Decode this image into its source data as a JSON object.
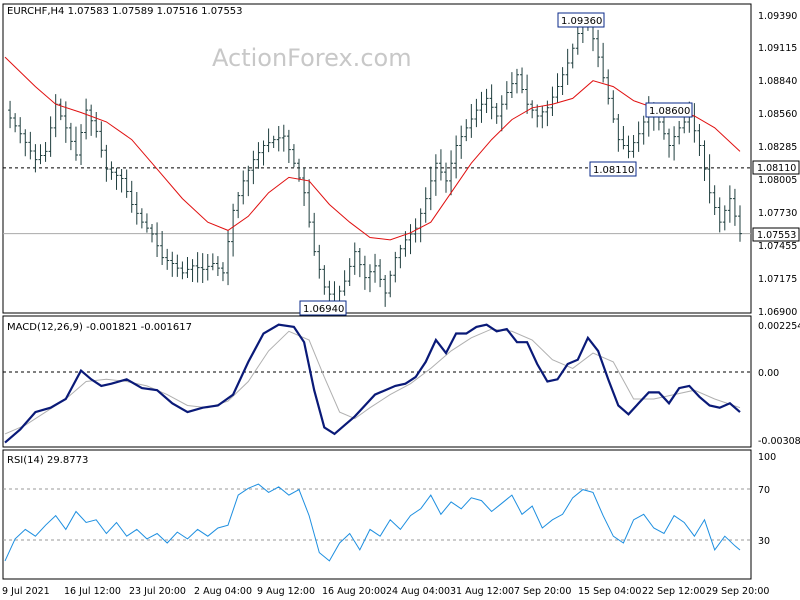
{
  "chart_data": {
    "type": "line",
    "watermark": "ActionForex.com",
    "x_ticks": [
      "9 Jul 2021",
      "16 Jul 12:00",
      "23 Jul 20:00",
      "2 Aug 04:00",
      "9 Aug 12:00",
      "16 Aug 20:00",
      "24 Aug 04:00",
      "31 Aug 12:00",
      "7 Sep 20:00",
      "15 Sep 04:00",
      "22 Sep 12:00",
      "29 Sep 20:00"
    ],
    "price_panel": {
      "header": "EURCHF,H4  1.07583 1.07589 1.07516 1.07553",
      "symbol": "EURCHF",
      "timeframe": "H4",
      "ohlc": {
        "open": 1.07583,
        "high": 1.07589,
        "low": 1.07516,
        "close": 1.07553
      },
      "y_ticks": [
        "1.09390",
        "1.09115",
        "1.08840",
        "1.08560",
        "1.08285",
        "1.08005",
        "1.07730",
        "1.07455",
        "1.07175",
        "1.06900"
      ],
      "ylim": [
        1.0688,
        1.095
      ],
      "dashed_level": 1.0811,
      "dashed_level_label": "1.08110",
      "current_price": 1.07553,
      "current_price_label": "1.07553",
      "annotations": [
        {
          "text": "1.09360",
          "value": 1.0936
        },
        {
          "text": "1.06940",
          "value": 1.0694
        },
        {
          "text": "1.08600",
          "value": 1.086
        },
        {
          "text": "1.08110",
          "value": 1.0811
        }
      ],
      "close_path": [
        [
          0,
          1.086
        ],
        [
          3,
          1.084
        ],
        [
          6,
          1.0818
        ],
        [
          8,
          1.0825
        ],
        [
          10,
          1.0865
        ],
        [
          12,
          1.0845
        ],
        [
          14,
          1.0822
        ],
        [
          16,
          1.086
        ],
        [
          18,
          1.0842
        ],
        [
          20,
          1.081
        ],
        [
          23,
          1.0802
        ],
        [
          25,
          1.078
        ],
        [
          27,
          1.0765
        ],
        [
          29,
          1.0755
        ],
        [
          31,
          1.0735
        ],
        [
          33,
          1.073
        ],
        [
          35,
          1.0722
        ],
        [
          37,
          1.0728
        ],
        [
          39,
          1.0725
        ],
        [
          41,
          1.073
        ],
        [
          43,
          1.0722
        ],
        [
          45,
          1.0775
        ],
        [
          47,
          1.08
        ],
        [
          49,
          1.0818
        ],
        [
          51,
          1.083
        ],
        [
          53,
          1.0835
        ],
        [
          55,
          1.0838
        ],
        [
          57,
          1.0815
        ],
        [
          59,
          1.079
        ],
        [
          61,
          1.074
        ],
        [
          63,
          1.071
        ],
        [
          65,
          1.0698
        ],
        [
          67,
          1.0715
        ],
        [
          69,
          1.074
        ],
        [
          71,
          1.0718
        ],
        [
          73,
          1.0728
        ],
        [
          75,
          1.0705
        ],
        [
          77,
          1.0735
        ],
        [
          79,
          1.075
        ],
        [
          81,
          1.076
        ],
        [
          83,
          1.0785
        ],
        [
          85,
          1.0815
        ],
        [
          87,
          1.08
        ],
        [
          89,
          1.083
        ],
        [
          91,
          1.0845
        ],
        [
          93,
          1.086
        ],
        [
          95,
          1.087
        ],
        [
          97,
          1.0855
        ],
        [
          99,
          1.0875
        ],
        [
          101,
          1.089
        ],
        [
          103,
          1.0865
        ],
        [
          105,
          1.0855
        ],
        [
          107,
          1.0862
        ],
        [
          109,
          1.088
        ],
        [
          111,
          1.09
        ],
        [
          113,
          1.0925
        ],
        [
          115,
          1.0936
        ],
        [
          117,
          1.0905
        ],
        [
          119,
          1.087
        ],
        [
          121,
          1.0835
        ],
        [
          123,
          1.0825
        ],
        [
          125,
          1.084
        ],
        [
          127,
          1.086
        ],
        [
          129,
          1.085
        ],
        [
          131,
          1.083
        ],
        [
          133,
          1.0845
        ],
        [
          135,
          1.0855
        ],
        [
          137,
          1.083
        ],
        [
          139,
          1.079
        ],
        [
          141,
          1.0765
        ],
        [
          143,
          1.0785
        ],
        [
          145,
          1.07553
        ]
      ],
      "ma_path": [
        [
          0,
          1.0905
        ],
        [
          6,
          1.088
        ],
        [
          10,
          1.0865
        ],
        [
          15,
          1.0858
        ],
        [
          20,
          1.085
        ],
        [
          25,
          1.0835
        ],
        [
          30,
          1.081
        ],
        [
          35,
          1.0785
        ],
        [
          40,
          1.0765
        ],
        [
          44,
          1.0758
        ],
        [
          48,
          1.077
        ],
        [
          52,
          1.079
        ],
        [
          56,
          1.0803
        ],
        [
          60,
          1.08
        ],
        [
          64,
          1.078
        ],
        [
          68,
          1.0765
        ],
        [
          72,
          1.0752
        ],
        [
          76,
          1.075
        ],
        [
          80,
          1.0756
        ],
        [
          84,
          1.0765
        ],
        [
          88,
          1.079
        ],
        [
          92,
          1.0815
        ],
        [
          96,
          1.0835
        ],
        [
          100,
          1.0852
        ],
        [
          104,
          1.0862
        ],
        [
          108,
          1.0865
        ],
        [
          112,
          1.087
        ],
        [
          116,
          1.0885
        ],
        [
          120,
          1.088
        ],
        [
          124,
          1.0868
        ],
        [
          128,
          1.0862
        ],
        [
          132,
          1.086
        ],
        [
          136,
          1.0855
        ],
        [
          140,
          1.0845
        ],
        [
          145,
          1.0825
        ]
      ]
    },
    "macd_panel": {
      "header": "MACD(12,26,9) -0.001821 -0.001617",
      "name": "MACD(12,26,9)",
      "main_value": -0.001821,
      "signal_value": -0.001617,
      "y_ticks": [
        "0.002254",
        "0.00",
        "-0.003088"
      ],
      "ylim": [
        -0.0034,
        0.0026
      ],
      "zero_label": "0.00",
      "macd_path": [
        [
          0,
          -0.0032
        ],
        [
          3,
          -0.0026
        ],
        [
          6,
          -0.0018
        ],
        [
          9,
          -0.0016
        ],
        [
          12,
          -0.0012
        ],
        [
          15,
          0.0001
        ],
        [
          17,
          -0.0003
        ],
        [
          19,
          -0.0006
        ],
        [
          21,
          -0.0005
        ],
        [
          24,
          -0.0003
        ],
        [
          27,
          -0.0007
        ],
        [
          30,
          -0.0008
        ],
        [
          33,
          -0.0014
        ],
        [
          36,
          -0.0018
        ],
        [
          39,
          -0.0016
        ],
        [
          42,
          -0.0015
        ],
        [
          45,
          -0.001
        ],
        [
          48,
          0.0005
        ],
        [
          51,
          0.0018
        ],
        [
          54,
          0.0022
        ],
        [
          57,
          0.0021
        ],
        [
          59,
          0.0014
        ],
        [
          61,
          -0.0008
        ],
        [
          63,
          -0.0025
        ],
        [
          65,
          -0.0028
        ],
        [
          67,
          -0.0024
        ],
        [
          69,
          -0.002
        ],
        [
          71,
          -0.0015
        ],
        [
          73,
          -0.001
        ],
        [
          75,
          -0.0008
        ],
        [
          77,
          -0.0006
        ],
        [
          79,
          -0.0005
        ],
        [
          81,
          -0.0002
        ],
        [
          83,
          0.0005
        ],
        [
          85,
          0.0015
        ],
        [
          87,
          0.0009
        ],
        [
          89,
          0.0018
        ],
        [
          91,
          0.0018
        ],
        [
          93,
          0.0021
        ],
        [
          95,
          0.0022
        ],
        [
          97,
          0.0019
        ],
        [
          99,
          0.002
        ],
        [
          101,
          0.0014
        ],
        [
          103,
          0.0014
        ],
        [
          105,
          0.0004
        ],
        [
          107,
          -0.0004
        ],
        [
          109,
          -0.0003
        ],
        [
          111,
          0.0004
        ],
        [
          113,
          0.0006
        ],
        [
          115,
          0.0016
        ],
        [
          117,
          0.001
        ],
        [
          119,
          -0.0003
        ],
        [
          121,
          -0.0015
        ],
        [
          123,
          -0.0019
        ],
        [
          125,
          -0.0014
        ],
        [
          127,
          -0.0009
        ],
        [
          129,
          -0.0009
        ],
        [
          131,
          -0.0014
        ],
        [
          133,
          -0.0007
        ],
        [
          135,
          -0.0006
        ],
        [
          137,
          -0.0011
        ],
        [
          139,
          -0.0015
        ],
        [
          141,
          -0.0016
        ],
        [
          143,
          -0.0014
        ],
        [
          145,
          -0.0018
        ]
      ],
      "signal_path": [
        [
          0,
          -0.0028
        ],
        [
          4,
          -0.0024
        ],
        [
          8,
          -0.0018
        ],
        [
          12,
          -0.0012
        ],
        [
          16,
          -0.0004
        ],
        [
          20,
          -0.0003
        ],
        [
          24,
          -0.0004
        ],
        [
          28,
          -0.0006
        ],
        [
          32,
          -0.001
        ],
        [
          36,
          -0.0015
        ],
        [
          40,
          -0.0016
        ],
        [
          44,
          -0.0013
        ],
        [
          48,
          -0.0004
        ],
        [
          52,
          0.001
        ],
        [
          56,
          0.0019
        ],
        [
          60,
          0.0015
        ],
        [
          63,
          -0.0002
        ],
        [
          66,
          -0.0018
        ],
        [
          69,
          -0.0021
        ],
        [
          72,
          -0.0016
        ],
        [
          76,
          -0.001
        ],
        [
          80,
          -0.0005
        ],
        [
          84,
          0.0002
        ],
        [
          88,
          0.001
        ],
        [
          92,
          0.0016
        ],
        [
          96,
          0.002
        ],
        [
          100,
          0.0019
        ],
        [
          104,
          0.0015
        ],
        [
          108,
          0.0006
        ],
        [
          112,
          0.0002
        ],
        [
          116,
          0.0009
        ],
        [
          120,
          0.0005
        ],
        [
          124,
          -0.0012
        ],
        [
          128,
          -0.0012
        ],
        [
          132,
          -0.001
        ],
        [
          136,
          -0.0008
        ],
        [
          140,
          -0.0012
        ],
        [
          145,
          -0.0016
        ]
      ]
    },
    "rsi_panel": {
      "header": "RSI(14) 29.8773",
      "name": "RSI(14)",
      "value": 29.8773,
      "y_ticks": [
        "100",
        "70",
        "30"
      ],
      "ylim": [
        0,
        100
      ],
      "levels": [
        70,
        30
      ],
      "rsi_path": [
        [
          0,
          22
        ],
        [
          2,
          38
        ],
        [
          4,
          45
        ],
        [
          6,
          40
        ],
        [
          8,
          48
        ],
        [
          10,
          55
        ],
        [
          12,
          45
        ],
        [
          14,
          58
        ],
        [
          16,
          50
        ],
        [
          18,
          52
        ],
        [
          20,
          42
        ],
        [
          22,
          50
        ],
        [
          24,
          40
        ],
        [
          26,
          45
        ],
        [
          28,
          38
        ],
        [
          30,
          42
        ],
        [
          32,
          35
        ],
        [
          34,
          43
        ],
        [
          36,
          38
        ],
        [
          38,
          45
        ],
        [
          40,
          40
        ],
        [
          42,
          46
        ],
        [
          44,
          48
        ],
        [
          46,
          70
        ],
        [
          48,
          75
        ],
        [
          50,
          78
        ],
        [
          52,
          72
        ],
        [
          54,
          76
        ],
        [
          56,
          70
        ],
        [
          58,
          74
        ],
        [
          60,
          55
        ],
        [
          62,
          28
        ],
        [
          64,
          22
        ],
        [
          66,
          35
        ],
        [
          68,
          42
        ],
        [
          70,
          30
        ],
        [
          72,
          45
        ],
        [
          74,
          40
        ],
        [
          76,
          52
        ],
        [
          78,
          45
        ],
        [
          80,
          55
        ],
        [
          82,
          60
        ],
        [
          84,
          70
        ],
        [
          86,
          56
        ],
        [
          88,
          65
        ],
        [
          90,
          60
        ],
        [
          92,
          68
        ],
        [
          94,
          66
        ],
        [
          96,
          58
        ],
        [
          98,
          64
        ],
        [
          100,
          70
        ],
        [
          102,
          56
        ],
        [
          104,
          62
        ],
        [
          106,
          46
        ],
        [
          108,
          52
        ],
        [
          110,
          56
        ],
        [
          112,
          68
        ],
        [
          114,
          74
        ],
        [
          116,
          72
        ],
        [
          118,
          55
        ],
        [
          120,
          40
        ],
        [
          122,
          35
        ],
        [
          124,
          52
        ],
        [
          126,
          56
        ],
        [
          128,
          46
        ],
        [
          130,
          42
        ],
        [
          132,
          55
        ],
        [
          134,
          50
        ],
        [
          136,
          40
        ],
        [
          138,
          52
        ],
        [
          140,
          30
        ],
        [
          142,
          40
        ],
        [
          144,
          33
        ],
        [
          145,
          29.9
        ]
      ]
    }
  }
}
